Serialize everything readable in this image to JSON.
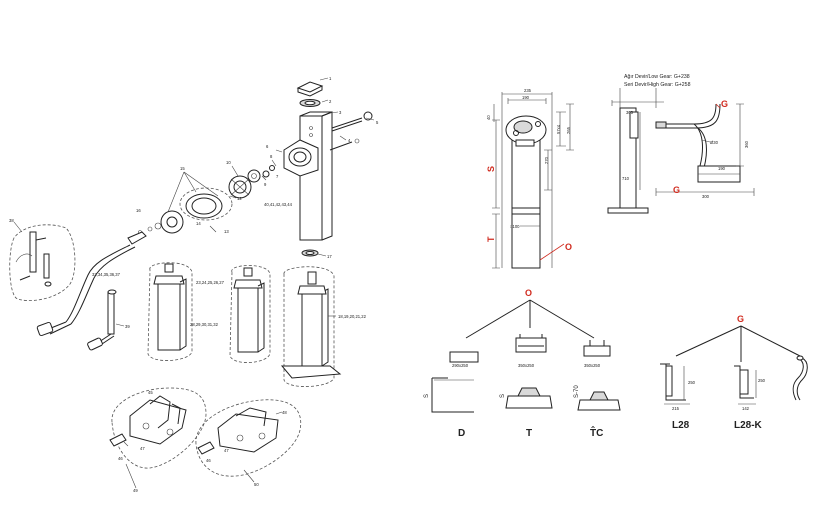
{
  "parts": {
    "p1": "1",
    "p2": "2",
    "p3": "3",
    "p4": "4",
    "p5": "5",
    "p6": "6",
    "p7": "7",
    "p8": "8",
    "p9": "9",
    "p10": "10",
    "p12": "12",
    "p13": "13",
    "p14": "14",
    "p15": "15",
    "p16": "16",
    "p17": "17",
    "p38": "38",
    "p39": "39",
    "p45": "45",
    "p46": "46",
    "p47": "47",
    "p48": "48",
    "p49": "49",
    "p50": "50",
    "g_40_44": "40,41,42,43,44",
    "g_33_37": "33,34,35,36,37",
    "g_23_27": "23,24,25,26,27",
    "g_28_32": "28,29,30,31,32",
    "g_18_22": "18,19,20,21,22"
  },
  "dims": {
    "d235": "235",
    "d190": "190",
    "d40": "40",
    "d57": "57x4",
    "d265": "265",
    "d270": "270",
    "d100": "□100",
    "d305": "305",
    "d360": "360",
    "d30": "Ø30",
    "d190b": "190",
    "d300": "300",
    "d710": "710",
    "pad_d": "290x250",
    "pad_t": "350x250",
    "pad_tc": "350x250",
    "d250a": "250",
    "d215": "215",
    "d250b": "250",
    "d142": "142"
  },
  "gear_note": {
    "line1": "Ağır Devir/Low Gear: G+238",
    "line2": "Seri Devir/High Gear: G+258"
  },
  "letters": {
    "S": "S",
    "T": "T",
    "O": "O",
    "G": "G",
    "G2": "G",
    "O2": "O",
    "G3": "G",
    "S2": "S",
    "S3": "S",
    "S70": "S-70"
  },
  "labels": {
    "D": "D",
    "T": "T",
    "TC": "T̂C",
    "L28": "L28",
    "L28K": "L28-K"
  },
  "colors": {
    "accent": "#d02b1f",
    "line": "#222222"
  }
}
